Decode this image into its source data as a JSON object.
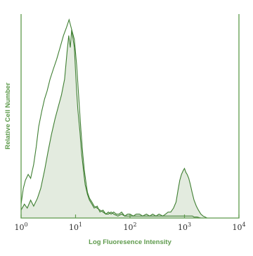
{
  "chart_data": {
    "type": "area",
    "xlabel": "Log Fluoresence Intensity",
    "ylabel": "Relative Cell Number",
    "x_scale": "log",
    "xlim": [
      1,
      10000
    ],
    "ylim": [
      0,
      1
    ],
    "x_ticks": [
      {
        "base": "10",
        "exp": "0",
        "value": 1
      },
      {
        "base": "10",
        "exp": "1",
        "value": 10
      },
      {
        "base": "10",
        "exp": "2",
        "value": 100
      },
      {
        "base": "10",
        "exp": "3",
        "value": 1000
      },
      {
        "base": "10",
        "exp": "4",
        "value": 10000
      }
    ],
    "grid": false,
    "legend": "none",
    "colors": {
      "axis": "#5e9a4c",
      "line": "#3f7f32",
      "fill": "#e3ebdf",
      "text": "#2f2f2f"
    },
    "series": [
      {
        "style": "filled",
        "x": [
          1.0,
          1.15,
          1.3,
          1.5,
          1.7,
          2.0,
          2.3,
          2.7,
          3.1,
          3.6,
          4.2,
          4.8,
          5.5,
          6.3,
          7.0,
          7.5,
          8.0,
          8.5,
          9.0,
          9.5,
          10.0,
          10.5,
          11.0,
          12.0,
          13.0,
          14.0,
          15.0,
          16.5,
          18.0,
          20.0,
          22.0,
          25.0,
          28.0,
          32.0,
          36.0,
          40.0,
          45.0,
          50.0,
          56.0,
          63.0,
          70.0,
          80.0,
          90.0,
          100.0,
          115.0,
          130.0,
          150.0,
          170.0,
          200.0,
          230.0,
          260.0,
          300.0,
          340.0,
          400.0,
          450.0,
          500.0,
          560.0,
          630.0,
          700.0,
          760.0,
          820.0,
          880.0,
          950.0,
          1000.0,
          1060.0,
          1120.0,
          1200.0,
          1280.0,
          1380.0,
          1500.0,
          1650.0,
          1800.0,
          2000.0,
          2200.0,
          2400.0,
          2600.0
        ],
        "y": [
          0.04,
          0.07,
          0.05,
          0.09,
          0.06,
          0.1,
          0.15,
          0.24,
          0.33,
          0.42,
          0.5,
          0.56,
          0.62,
          0.7,
          0.84,
          0.92,
          0.86,
          0.95,
          0.9,
          0.86,
          0.74,
          0.64,
          0.55,
          0.44,
          0.32,
          0.24,
          0.17,
          0.12,
          0.09,
          0.07,
          0.05,
          0.06,
          0.03,
          0.04,
          0.02,
          0.03,
          0.02,
          0.03,
          0.02,
          0.02,
          0.03,
          0.01,
          0.02,
          0.02,
          0.01,
          0.02,
          0.02,
          0.01,
          0.02,
          0.01,
          0.02,
          0.01,
          0.02,
          0.01,
          0.02,
          0.03,
          0.03,
          0.05,
          0.08,
          0.14,
          0.19,
          0.22,
          0.24,
          0.25,
          0.23,
          0.22,
          0.2,
          0.17,
          0.13,
          0.09,
          0.06,
          0.04,
          0.02,
          0.01,
          0.005,
          0.0
        ]
      },
      {
        "style": "outline",
        "x": [
          1.0,
          1.1,
          1.2,
          1.35,
          1.5,
          1.7,
          1.9,
          2.1,
          2.4,
          2.7,
          3.0,
          3.4,
          3.9,
          4.5,
          5.2,
          6.0,
          6.8,
          7.6,
          8.5,
          9.5,
          10.5,
          11.5,
          12.5,
          13.5,
          14.5,
          15.5,
          16.5,
          18.0,
          20.0,
          22.0,
          25.0,
          28.0,
          32.0,
          36.0,
          40.0,
          45.0,
          50.0,
          60.0,
          70.0,
          80.0,
          100.0,
          130.0,
          170.0,
          230.0,
          300.0,
          400.0,
          500.0,
          600.0,
          700.0,
          800.0,
          900.0,
          1000.0,
          1100.0,
          1200.0,
          1300.0,
          1400.0,
          1500.0,
          1700.0,
          2000.0,
          2400.0,
          2800.0
        ],
        "y": [
          0.07,
          0.15,
          0.19,
          0.22,
          0.2,
          0.27,
          0.36,
          0.46,
          0.54,
          0.6,
          0.64,
          0.7,
          0.75,
          0.8,
          0.86,
          0.92,
          0.96,
          1.0,
          0.95,
          0.9,
          0.77,
          0.6,
          0.45,
          0.33,
          0.24,
          0.18,
          0.13,
          0.1,
          0.08,
          0.06,
          0.05,
          0.04,
          0.03,
          0.02,
          0.02,
          0.03,
          0.02,
          0.01,
          0.02,
          0.01,
          0.01,
          0.01,
          0.01,
          0.01,
          0.01,
          0.01,
          0.01,
          0.01,
          0.01,
          0.01,
          0.01,
          0.01,
          0.01,
          0.01,
          0.01,
          0.01,
          0.005,
          0.005,
          0.0,
          0.0,
          0.0
        ]
      }
    ]
  }
}
